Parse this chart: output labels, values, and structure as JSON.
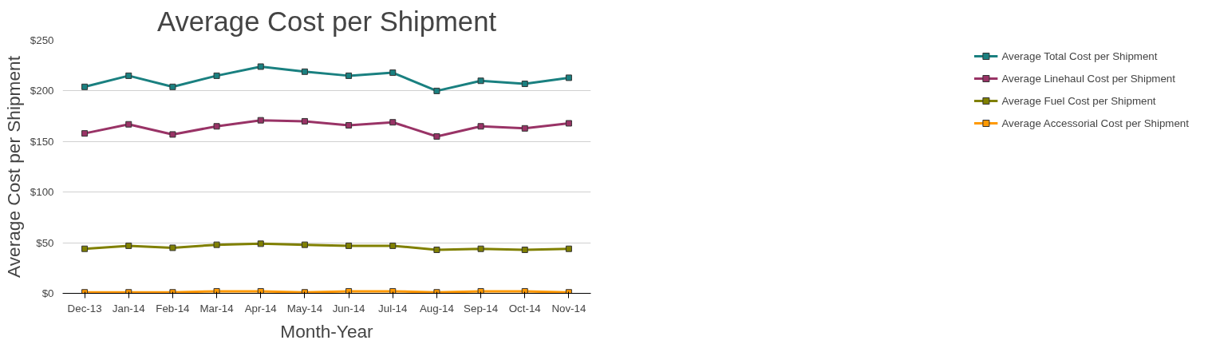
{
  "chart_data": {
    "type": "line",
    "title": "Average Cost per Shipment",
    "xlabel": "Month-Year",
    "ylabel": "Average Cost per Shipment",
    "categories": [
      "Dec-13",
      "Jan-14",
      "Feb-14",
      "Mar-14",
      "Apr-14",
      "May-14",
      "Jun-14",
      "Jul-14",
      "Aug-14",
      "Sep-14",
      "Oct-14",
      "Nov-14"
    ],
    "series": [
      {
        "name": "Average Total Cost per Shipment",
        "color": "#1a8080",
        "values": [
          204,
          215,
          204,
          215,
          224,
          219,
          215,
          218,
          200,
          210,
          207,
          213
        ]
      },
      {
        "name": "Average Linehaul Cost per Shipment",
        "color": "#993366",
        "values": [
          158,
          167,
          157,
          165,
          171,
          170,
          166,
          169,
          155,
          165,
          163,
          168
        ]
      },
      {
        "name": "Average Fuel Cost per Shipment",
        "color": "#808000",
        "values": [
          44,
          47,
          45,
          48,
          49,
          48,
          47,
          47,
          43,
          44,
          43,
          44
        ]
      },
      {
        "name": "Average Accessorial Cost per Shipment",
        "color": "#ff9900",
        "values": [
          1,
          1,
          1,
          2,
          2,
          1,
          2,
          2,
          1,
          2,
          2,
          1
        ]
      }
    ],
    "ylim": [
      0,
      250
    ],
    "yticks": [
      {
        "value": 0,
        "label": "$0"
      },
      {
        "value": 50,
        "label": "$50"
      },
      {
        "value": 100,
        "label": "$100"
      },
      {
        "value": 150,
        "label": "$150"
      },
      {
        "value": 200,
        "label": "$200"
      },
      {
        "value": 250,
        "label": "$250"
      }
    ],
    "grid": "y",
    "legend": "right",
    "marker": "square",
    "line_style": "solid"
  }
}
